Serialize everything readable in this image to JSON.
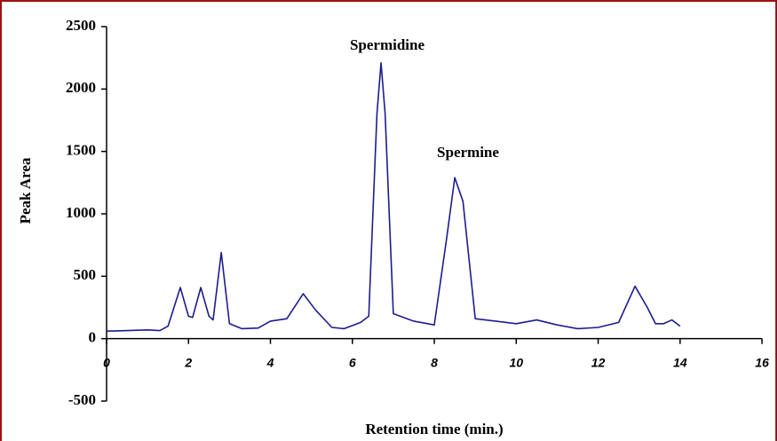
{
  "chart_data": {
    "type": "line",
    "x_label": "Retention time (min.)",
    "y_label": "Peak Area",
    "annotations": [
      "Spermidine",
      "Spermine"
    ],
    "x": [
      0,
      0.5,
      1,
      1.3,
      1.5,
      1.8,
      2.0,
      2.1,
      2.3,
      2.5,
      2.6,
      2.8,
      3.0,
      3.3,
      3.7,
      4.0,
      4.4,
      4.8,
      5.1,
      5.5,
      5.8,
      6.2,
      6.4,
      6.6,
      6.7,
      6.8,
      7.0,
      7.5,
      8.0,
      8.3,
      8.5,
      8.7,
      9.0,
      9.5,
      10.0,
      10.5,
      11.0,
      11.5,
      12.0,
      12.5,
      12.9,
      13.2,
      13.4,
      13.6,
      13.8,
      14.0
    ],
    "series": [
      {
        "name": "Peak Area",
        "color": "#1c1c8e",
        "values": [
          60,
          65,
          70,
          65,
          100,
          410,
          180,
          170,
          410,
          180,
          150,
          690,
          120,
          80,
          85,
          140,
          160,
          360,
          230,
          90,
          80,
          130,
          180,
          1800,
          2210,
          1800,
          200,
          140,
          110,
          800,
          1290,
          1100,
          160,
          140,
          120,
          150,
          110,
          80,
          90,
          130,
          420,
          250,
          120,
          120,
          150,
          100
        ]
      }
    ],
    "xlim": [
      0,
      16
    ],
    "xticks": [
      0,
      2,
      4,
      6,
      8,
      10,
      12,
      14,
      16
    ],
    "ylim": [
      -500,
      2500
    ],
    "yticks": [
      -500,
      0,
      500,
      1000,
      1500,
      2000,
      2500
    ],
    "grid": false
  }
}
